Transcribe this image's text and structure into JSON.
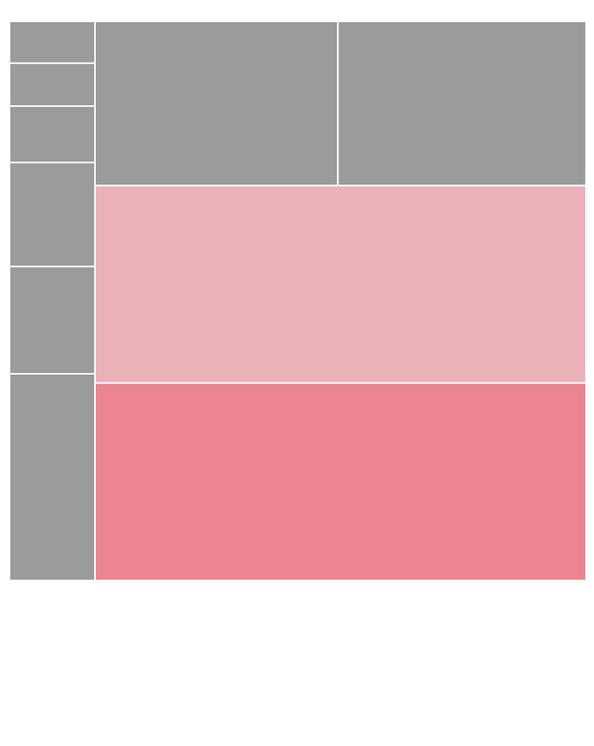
{
  "chart_data": {
    "type": "treemap",
    "title": "",
    "colors": {
      "neutral": "#9b9b9b",
      "highlight_light": "#ebb1b8",
      "highlight": "#ea8592"
    },
    "columns": [
      {
        "items": [
          {
            "value": 3.7,
            "color": "neutral"
          },
          {
            "value": 3.8,
            "color": "neutral"
          },
          {
            "value": 5.0,
            "color": "neutral"
          },
          {
            "value": 9.2,
            "color": "neutral"
          },
          {
            "value": 9.5,
            "color": "neutral"
          },
          {
            "value": 18.3,
            "color": "neutral"
          }
        ]
      },
      {
        "rows": [
          {
            "items": [
              {
                "value": 41.3,
                "color": "neutral"
              },
              {
                "value": 42.2,
                "color": "neutral"
              }
            ]
          },
          {
            "items": [
              {
                "value": 100.4,
                "color": "highlight_light"
              }
            ]
          },
          {
            "items": [
              {
                "value": 100.4,
                "color": "highlight"
              }
            ]
          }
        ]
      }
    ]
  }
}
